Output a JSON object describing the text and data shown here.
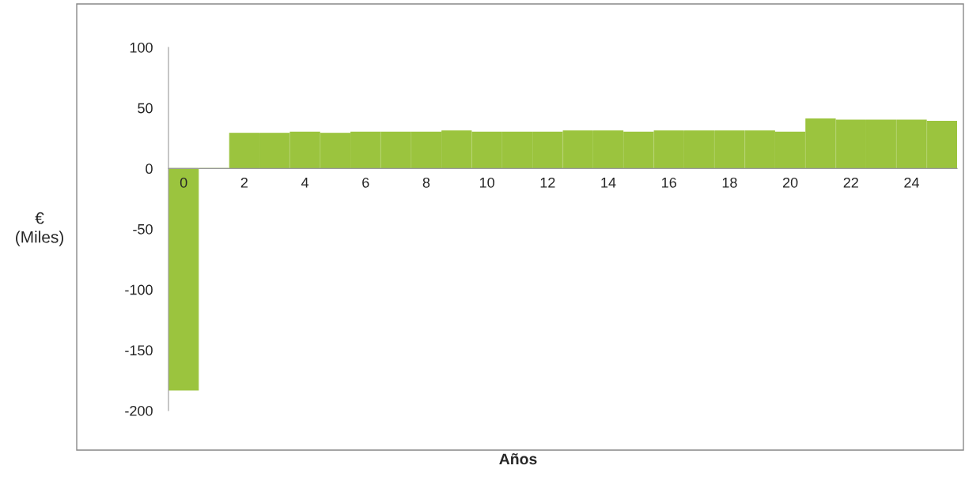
{
  "chart_data": {
    "type": "bar",
    "xlabel": "Años",
    "ylabel": "€\n(Miles)",
    "categories": [
      "0",
      null,
      "2",
      null,
      "4",
      null,
      "6",
      null,
      "8",
      null,
      "10",
      null,
      "12",
      null,
      "14",
      null,
      "16",
      null,
      "18",
      null,
      "20",
      null,
      "22",
      null,
      "24",
      null
    ],
    "values": [
      -183,
      0,
      29,
      29,
      30,
      29,
      30,
      30,
      30,
      31,
      30,
      30,
      30,
      31,
      31,
      30,
      31,
      31,
      31,
      31,
      30,
      41,
      40,
      40,
      40,
      39
    ],
    "color": "#9bc43e",
    "ylim": [
      -200,
      100
    ],
    "yticks": [
      -200,
      -150,
      -100,
      -50,
      0,
      50,
      100
    ],
    "grid": false,
    "legend": false
  }
}
